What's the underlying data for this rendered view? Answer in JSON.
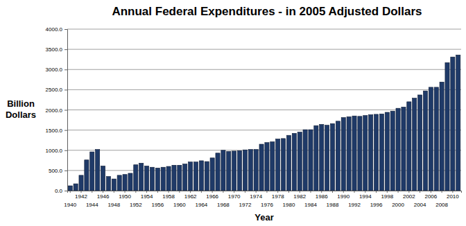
{
  "chart_data": {
    "type": "bar",
    "title": "Annual Federal Expenditures - in 2005 Adjusted Dollars",
    "x_label": "Year",
    "y_label": "Billion Dollars",
    "categories": [
      "1940",
      null,
      "1942",
      null,
      "1944",
      null,
      "1946",
      null,
      "1948",
      null,
      "1950",
      null,
      "1952",
      null,
      "1954",
      null,
      "1956",
      null,
      "1958",
      null,
      "1960",
      null,
      "1962",
      null,
      "1964",
      null,
      "1966",
      null,
      "1968",
      null,
      "1970",
      null,
      "1972",
      null,
      "1974",
      null,
      "1976",
      null,
      "1978",
      null,
      "1980",
      null,
      "1982",
      null,
      "1984",
      null,
      "1986",
      null,
      "1988",
      null,
      "1990",
      null,
      "1992",
      null,
      "1994",
      null,
      "1996",
      null,
      "1998",
      null,
      "2000",
      null,
      "2002",
      null,
      "2004",
      null,
      "2006",
      null,
      "2008",
      null,
      "2010",
      null
    ],
    "values": [
      120,
      170,
      380,
      760,
      960,
      1020,
      610,
      350,
      290,
      380,
      400,
      430,
      640,
      680,
      610,
      580,
      560,
      580,
      600,
      630,
      630,
      660,
      710,
      710,
      740,
      720,
      810,
      930,
      1000,
      970,
      980,
      990,
      1010,
      1020,
      1020,
      1150,
      1190,
      1210,
      1280,
      1290,
      1370,
      1420,
      1450,
      1510,
      1510,
      1610,
      1640,
      1620,
      1660,
      1720,
      1810,
      1830,
      1850,
      1840,
      1860,
      1880,
      1890,
      1900,
      1940,
      1970,
      2040,
      2070,
      2200,
      2290,
      2370,
      2470,
      2560,
      2560,
      2690,
      3170,
      3310,
      3360
    ],
    "color": "#1f3a68",
    "ylim": [
      0,
      4000
    ],
    "yticks": [
      {
        "value": 0,
        "label": "0.0"
      },
      {
        "value": 500,
        "label": "500.0"
      },
      {
        "value": 1000,
        "label": "1000.0"
      },
      {
        "value": 1500,
        "label": "1500.0"
      },
      {
        "value": 2000,
        "label": "2000.0"
      },
      {
        "value": 2500,
        "label": "2500.0"
      },
      {
        "value": 3000,
        "label": "3000.0"
      },
      {
        "value": 3500,
        "label": "3500.0"
      },
      {
        "value": 4000,
        "label": "4000.0"
      }
    ],
    "grid": true
  }
}
